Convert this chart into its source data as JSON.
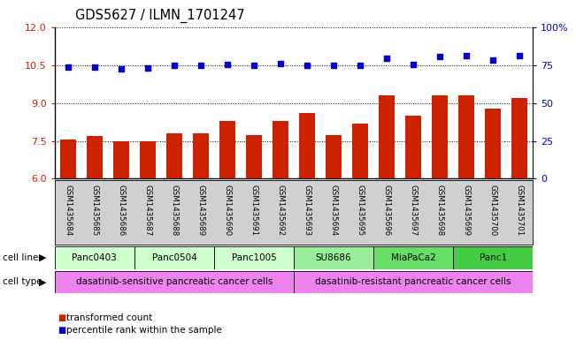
{
  "title": "GDS5627 / ILMN_1701247",
  "samples": [
    "GSM1435684",
    "GSM1435685",
    "GSM1435686",
    "GSM1435687",
    "GSM1435688",
    "GSM1435689",
    "GSM1435690",
    "GSM1435691",
    "GSM1435692",
    "GSM1435693",
    "GSM1435694",
    "GSM1435695",
    "GSM1435696",
    "GSM1435697",
    "GSM1435698",
    "GSM1435699",
    "GSM1435700",
    "GSM1435701"
  ],
  "bar_values": [
    7.55,
    7.7,
    7.5,
    7.5,
    7.8,
    7.8,
    8.3,
    7.75,
    8.3,
    8.6,
    7.75,
    8.2,
    9.3,
    8.5,
    9.3,
    9.3,
    8.8,
    9.2
  ],
  "scatter_values": [
    10.45,
    10.42,
    10.35,
    10.4,
    10.5,
    10.52,
    10.55,
    10.52,
    10.58,
    10.5,
    10.5,
    10.5,
    10.8,
    10.55,
    10.85,
    10.88,
    10.72,
    10.88
  ],
  "ylim_left": [
    6,
    12
  ],
  "ylim_right": [
    0,
    100
  ],
  "yticks_left": [
    6,
    7.5,
    9,
    10.5,
    12
  ],
  "yticks_right": [
    0,
    25,
    50,
    75,
    100
  ],
  "cell_line_groups": [
    {
      "label": "Panc0403",
      "start": 0,
      "end": 2
    },
    {
      "label": "Panc0504",
      "start": 3,
      "end": 5
    },
    {
      "label": "Panc1005",
      "start": 6,
      "end": 8
    },
    {
      "label": "SU8686",
      "start": 9,
      "end": 11
    },
    {
      "label": "MiaPaCa2",
      "start": 12,
      "end": 14
    },
    {
      "label": "Panc1",
      "start": 15,
      "end": 17
    }
  ],
  "cell_line_colors": [
    "#ccffcc",
    "#ccffcc",
    "#ccffcc",
    "#99ee99",
    "#77dd77",
    "#66cc66"
  ],
  "cell_type_groups": [
    {
      "label": "dasatinib-sensitive pancreatic cancer cells",
      "start": 0,
      "end": 8
    },
    {
      "label": "dasatinib-resistant pancreatic cancer cells",
      "start": 9,
      "end": 17
    }
  ],
  "cell_type_color": "#ee82ee",
  "xtick_bg_color": "#d0d0d0",
  "bar_color": "#cc2200",
  "scatter_color": "#0000cc",
  "left_tick_color": "#cc2200",
  "right_tick_color": "#0000cc",
  "legend_bar_label": "transformed count",
  "legend_scatter_label": "percentile rank within the sample"
}
